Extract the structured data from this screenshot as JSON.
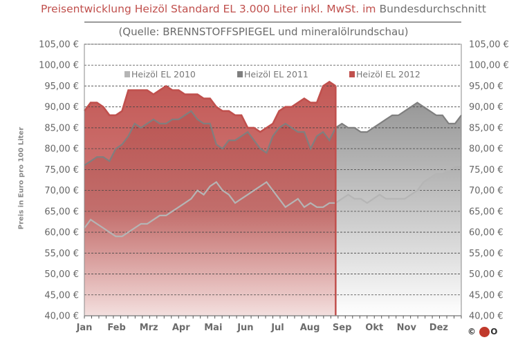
{
  "header": {
    "title_red": "Preisentwicklung Heizöl Standard EL 3.000 Liter inkl. MwSt. im",
    "title_grey": "Bundesdurchschnitt",
    "subtitle": "(Quelle: BRENNSTOFFSPIEGEL  und mineralölrundschau)"
  },
  "logo": {
    "text": "©",
    "suffix": "O"
  },
  "chart_data": {
    "type": "area",
    "title": "Preisentwicklung Heizöl Standard EL 3.000 Liter inkl. MwSt. im Bundesdurchschnitt",
    "subtitle": "(Quelle: BRENNSTOFFSPIEGEL  und mineralölrundschau)",
    "ylabel": "Preis in Euro pro 100 Liter",
    "ylim": [
      40,
      105
    ],
    "yticks": [
      "40,00 €",
      "45,00 €",
      "50,00 €",
      "55,00 €",
      "60,00 €",
      "65,00 €",
      "70,00 €",
      "75,00 €",
      "80,00 €",
      "85,00 €",
      "90,00 €",
      "95,00 €",
      "100,00 €",
      "105,00 €"
    ],
    "x_tick_labels": [
      "Jan",
      "Feb",
      "Mrz",
      "Apr",
      "Mai",
      "Jun",
      "Jul",
      "Aug",
      "Sep",
      "Okt",
      "Nov",
      "Dez"
    ],
    "x_unit": "month (0 = start of January, 12 = end of December)",
    "legend_position": "top-center",
    "grid": "horizontal dashed",
    "colors": {
      "2010": "#b5b5b5",
      "2011": "#7f7f7f",
      "2012": "#c0504d"
    },
    "series": [
      {
        "name": "Heizöl EL 2010",
        "x": [
          0,
          0.2,
          0.4,
          0.6,
          0.8,
          1,
          1.2,
          1.4,
          1.6,
          1.8,
          2,
          2.2,
          2.4,
          2.6,
          2.8,
          3,
          3.2,
          3.4,
          3.6,
          3.8,
          4,
          4.2,
          4.4,
          4.6,
          4.8,
          5,
          5.2,
          5.4,
          5.6,
          5.8,
          6,
          6.2,
          6.4,
          6.6,
          6.8,
          7,
          7.2,
          7.4,
          7.6,
          7.8,
          8,
          8.2,
          8.4,
          8.6,
          8.8,
          9,
          9.2,
          9.4,
          9.6,
          9.8,
          10,
          10.2,
          10.4,
          10.6,
          10.8,
          11,
          11.2,
          11.4,
          11.6,
          11.8,
          12
        ],
        "values": [
          61,
          63,
          62,
          61,
          60,
          59,
          59,
          60,
          61,
          62,
          62,
          63,
          64,
          64,
          65,
          66,
          67,
          68,
          70,
          69,
          71,
          72,
          70,
          69,
          67,
          68,
          69,
          70,
          71,
          72,
          70,
          68,
          66,
          67,
          68,
          66,
          67,
          66,
          66,
          67,
          67,
          68,
          69,
          68,
          68,
          67,
          68,
          69,
          68,
          68,
          68,
          68,
          69,
          70,
          72,
          73,
          74,
          74,
          75,
          76,
          76
        ]
      },
      {
        "name": "Heizöl EL 2011",
        "x": [
          0,
          0.2,
          0.4,
          0.6,
          0.8,
          1,
          1.2,
          1.4,
          1.6,
          1.8,
          2,
          2.2,
          2.4,
          2.6,
          2.8,
          3,
          3.2,
          3.4,
          3.6,
          3.8,
          4,
          4.2,
          4.4,
          4.6,
          4.8,
          5,
          5.2,
          5.4,
          5.6,
          5.8,
          6,
          6.2,
          6.4,
          6.6,
          6.8,
          7,
          7.2,
          7.4,
          7.6,
          7.8,
          8,
          8.2,
          8.4,
          8.6,
          8.8,
          9,
          9.2,
          9.4,
          9.6,
          9.8,
          10,
          10.2,
          10.4,
          10.6,
          10.8,
          11,
          11.2,
          11.4,
          11.6,
          11.8,
          12
        ],
        "values": [
          76,
          77,
          78,
          78,
          77,
          80,
          81,
          83,
          86,
          85,
          86,
          87,
          86,
          86,
          87,
          87,
          88,
          89,
          87,
          86,
          86,
          81,
          80,
          82,
          82,
          83,
          84,
          82,
          80,
          79,
          83,
          85,
          86,
          85,
          84,
          84,
          80,
          83,
          84,
          82,
          85,
          86,
          85,
          85,
          84,
          84,
          85,
          86,
          87,
          88,
          88,
          89,
          90,
          91,
          90,
          89,
          88,
          88,
          86,
          86,
          88
        ]
      },
      {
        "name": "Heizöl EL 2012",
        "x": [
          0,
          0.2,
          0.4,
          0.6,
          0.8,
          1,
          1.2,
          1.4,
          1.6,
          1.8,
          2,
          2.2,
          2.4,
          2.6,
          2.8,
          3,
          3.2,
          3.4,
          3.6,
          3.8,
          4,
          4.2,
          4.4,
          4.6,
          4.8,
          5,
          5.2,
          5.4,
          5.6,
          5.8,
          6,
          6.2,
          6.4,
          6.6,
          6.8,
          7,
          7.2,
          7.4,
          7.6,
          7.8,
          8
        ],
        "values": [
          89,
          91,
          91,
          90,
          88,
          88,
          89,
          94,
          94,
          94,
          94,
          93,
          94,
          95,
          94,
          94,
          93,
          93,
          93,
          92,
          92,
          90,
          89,
          89,
          88,
          88,
          85,
          85,
          84,
          85,
          86,
          89,
          90,
          90,
          91,
          92,
          91,
          91,
          95,
          96,
          95
        ]
      }
    ]
  }
}
